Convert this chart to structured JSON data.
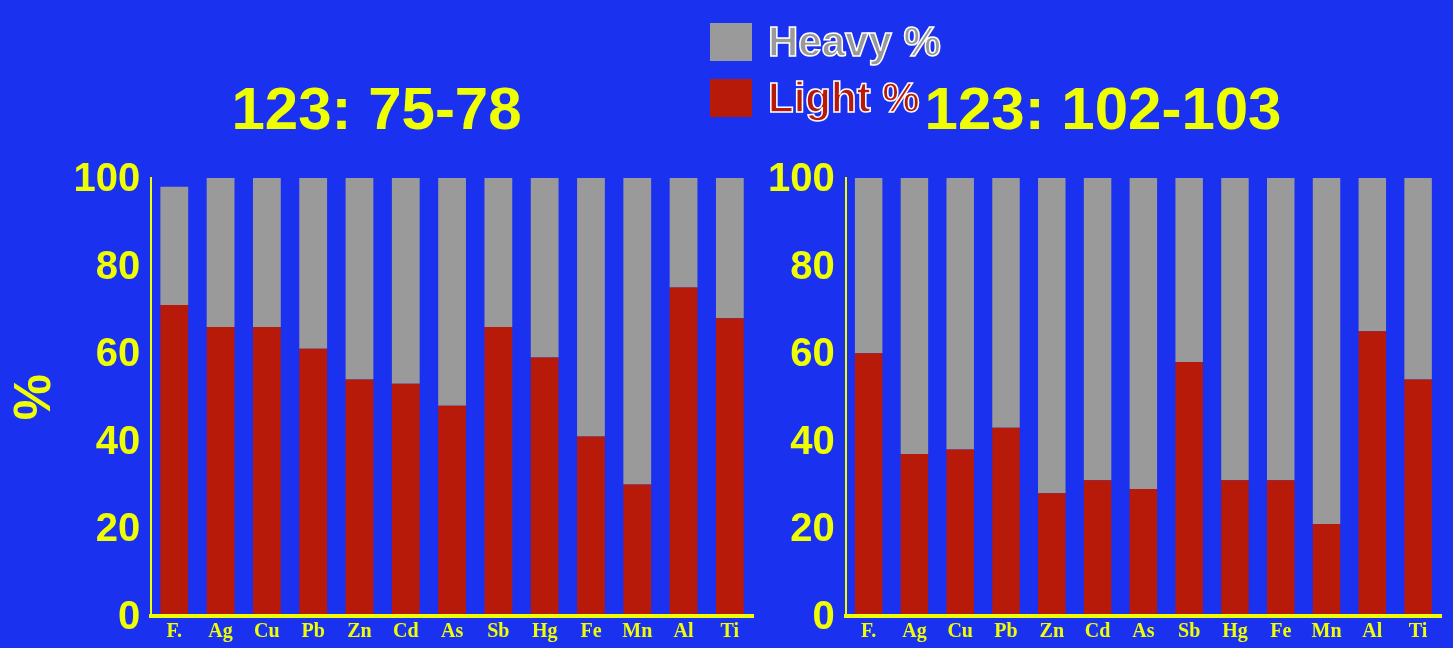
{
  "chart_data": [
    {
      "type": "bar",
      "title": "123: 75-78",
      "ylabel": "%",
      "stacked": true,
      "legend": "top right",
      "grid": false,
      "categories": [
        "F.",
        "Ag",
        "Cu",
        "Pb",
        "Zn",
        "Cd",
        "As",
        "Sb",
        "Hg",
        "Fe",
        "Mn",
        "Al",
        "Ti"
      ],
      "ylim": [
        0,
        100
      ],
      "yticks": [
        0,
        20,
        40,
        60,
        80,
        100
      ],
      "series": [
        {
          "name": "Light %",
          "color": "#b81a0a",
          "values": [
            71,
            66,
            66,
            61,
            54,
            53,
            48,
            66,
            59,
            41,
            30,
            75,
            68
          ]
        },
        {
          "name": "Heavy %",
          "color": "#9a9a9a",
          "values": [
            27,
            34,
            34,
            39,
            46,
            47,
            52,
            34,
            41,
            59,
            70,
            25,
            32
          ]
        }
      ]
    },
    {
      "type": "bar",
      "title": "123: 102-103",
      "stacked": true,
      "grid": false,
      "categories": [
        "F.",
        "Ag",
        "Cu",
        "Pb",
        "Zn",
        "Cd",
        "As",
        "Sb",
        "Hg",
        "Fe",
        "Mn",
        "Al",
        "Ti"
      ],
      "ylim": [
        0,
        100
      ],
      "yticks": [
        0,
        20,
        40,
        60,
        80,
        100
      ],
      "series": [
        {
          "color": "#b81a0a",
          "values": [
            60,
            37,
            38,
            43,
            28,
            31,
            29,
            58,
            31,
            31,
            21,
            65,
            54
          ]
        },
        {
          "color": "#9a9a9a",
          "values": [
            40,
            63,
            62,
            57,
            72,
            69,
            71,
            42,
            69,
            69,
            79,
            35,
            46
          ]
        }
      ]
    }
  ]
}
